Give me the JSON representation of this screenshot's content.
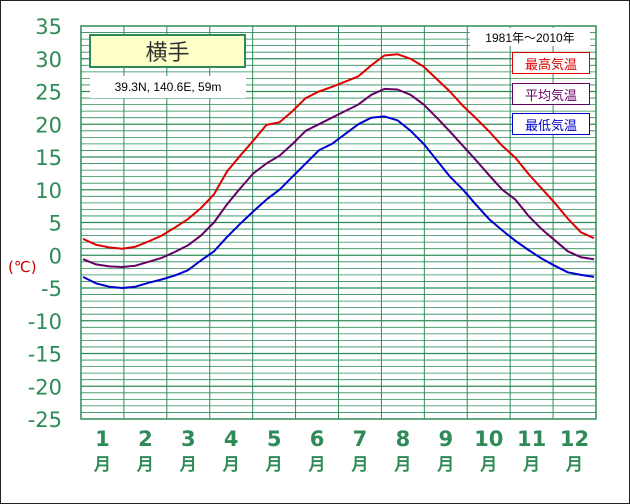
{
  "station": {
    "name": "横手",
    "coords": "39.3N,  140.6E,  59m"
  },
  "period": "1981年〜2010年",
  "unit_label": "(℃)",
  "colors": {
    "grid": "#2e8b57",
    "axis_text": "#2e8b57",
    "unit": "#cc0000"
  },
  "chart_data": {
    "type": "line",
    "ylim": [
      -25,
      35
    ],
    "yticks": [
      "35",
      "30",
      "25",
      "20",
      "15",
      "10",
      "5",
      "0",
      "-5",
      "-10",
      "-15",
      "-20",
      "-25"
    ],
    "ytick_values": [
      35,
      30,
      25,
      20,
      15,
      10,
      5,
      0,
      -5,
      -10,
      -15,
      -20,
      -25
    ],
    "month_labels": [
      "1",
      "2",
      "3",
      "4",
      "5",
      "6",
      "7",
      "8",
      "9",
      "10",
      "11",
      "12"
    ],
    "month_suffix": "月",
    "grid": true,
    "legend_position": "top-right",
    "series": [
      {
        "name": "最高気温",
        "color": "#dd0000",
        "values": [
          2.5,
          1.6,
          1.2,
          1.0,
          1.3,
          2.1,
          3.0,
          4.2,
          5.5,
          7.2,
          9.3,
          12.8,
          15.2,
          17.5,
          19.9,
          20.3,
          22.0,
          24.0,
          25.0,
          25.7,
          26.5,
          27.3,
          29.0,
          30.5,
          30.7,
          30.0,
          28.8,
          26.9,
          25.0,
          22.8,
          20.9,
          18.9,
          16.7,
          14.9,
          12.4,
          10.2,
          8.0,
          5.6,
          3.5,
          2.6
        ]
      },
      {
        "name": "平均気温",
        "color": "#660066",
        "values": [
          -0.6,
          -1.4,
          -1.7,
          -1.8,
          -1.6,
          -1.0,
          -0.4,
          0.5,
          1.5,
          3.0,
          5.0,
          7.8,
          10.2,
          12.5,
          14.0,
          15.2,
          17.0,
          19.0,
          20.0,
          21.0,
          22.0,
          23.0,
          24.5,
          25.4,
          25.3,
          24.5,
          23.0,
          21.0,
          18.9,
          16.7,
          14.5,
          12.2,
          10.0,
          8.5,
          6.0,
          4.0,
          2.3,
          0.6,
          -0.3,
          -0.6
        ]
      },
      {
        "name": "最低気温",
        "color": "#0000cc",
        "values": [
          -3.3,
          -4.3,
          -4.8,
          -5.0,
          -4.8,
          -4.2,
          -3.7,
          -3.1,
          -2.3,
          -0.8,
          0.6,
          2.8,
          4.8,
          6.7,
          8.5,
          10.0,
          12.0,
          14.0,
          16.0,
          17.0,
          18.5,
          20.0,
          21.0,
          21.2,
          20.6,
          19.0,
          17.0,
          14.5,
          12.0,
          10.0,
          7.7,
          5.5,
          3.8,
          2.2,
          0.8,
          -0.5,
          -1.6,
          -2.6,
          -3.0,
          -3.3
        ]
      }
    ]
  }
}
